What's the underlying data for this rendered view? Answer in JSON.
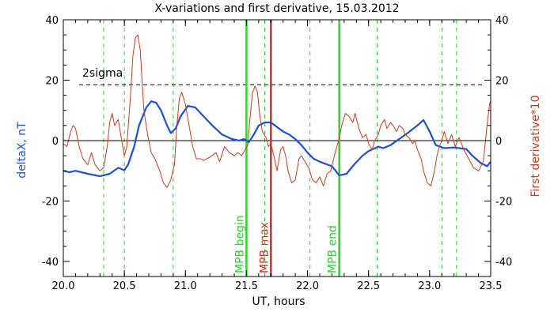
{
  "chart_data": {
    "type": "line",
    "title": "X-variations and first derivative, 15.03.2012",
    "xlabel": "UT, hours",
    "ylabel_left": "deltaX, nT",
    "ylabel_right": "First derivative*10",
    "xlim": [
      20.0,
      23.5
    ],
    "ylim": [
      -45,
      40
    ],
    "x_ticks": [
      20.0,
      20.5,
      21.0,
      21.5,
      22.0,
      22.5,
      23.0,
      23.5
    ],
    "x_tick_labels": [
      "20.0",
      "20.5",
      "21.0",
      "21.5",
      "22.0",
      "22.5",
      "23.0",
      "23.5"
    ],
    "y_ticks": [
      -40,
      -20,
      0,
      20,
      40
    ],
    "y_tick_labels": [
      "-40",
      "-20",
      "0",
      "20",
      "40"
    ],
    "threshold": {
      "label": "2sigma",
      "value": 18.5
    },
    "zero_line": 0,
    "dashed_verticals": [
      20.33,
      20.5,
      20.9,
      21.65,
      22.02,
      22.57,
      23.1,
      23.22
    ],
    "markers": [
      {
        "label": "MPB begin",
        "x": 21.5,
        "color": "#22dd22"
      },
      {
        "label": "MPB max",
        "x": 21.7,
        "color": "#e8281e"
      },
      {
        "label": "MPB end",
        "x": 22.26,
        "color": "#22dd22"
      }
    ],
    "series": [
      {
        "color": "#1f4fd8",
        "points": [
          [
            20.0,
            -10
          ],
          [
            20.05,
            -10.5
          ],
          [
            20.1,
            -10
          ],
          [
            20.2,
            -11
          ],
          [
            20.3,
            -11.8
          ],
          [
            20.38,
            -11
          ],
          [
            20.45,
            -9
          ],
          [
            20.5,
            -9.8
          ],
          [
            20.53,
            -8
          ],
          [
            20.58,
            -2
          ],
          [
            20.62,
            5
          ],
          [
            20.68,
            11
          ],
          [
            20.72,
            13
          ],
          [
            20.76,
            12.5
          ],
          [
            20.8,
            10
          ],
          [
            20.85,
            5
          ],
          [
            20.88,
            2.5
          ],
          [
            20.92,
            4
          ],
          [
            20.96,
            8
          ],
          [
            21.02,
            11.5
          ],
          [
            21.08,
            11
          ],
          [
            21.15,
            8
          ],
          [
            21.22,
            5
          ],
          [
            21.3,
            2
          ],
          [
            21.38,
            0.5
          ],
          [
            21.44,
            0
          ],
          [
            21.48,
            0.5
          ],
          [
            21.52,
            -0.5
          ],
          [
            21.56,
            2
          ],
          [
            21.6,
            5
          ],
          [
            21.65,
            6
          ],
          [
            21.7,
            6
          ],
          [
            21.75,
            4.5
          ],
          [
            21.8,
            3
          ],
          [
            21.85,
            2
          ],
          [
            21.9,
            0.5
          ],
          [
            21.95,
            -1.5
          ],
          [
            22.0,
            -4
          ],
          [
            22.05,
            -6
          ],
          [
            22.1,
            -7
          ],
          [
            22.2,
            -8.5
          ],
          [
            22.26,
            -11.5
          ],
          [
            22.32,
            -11
          ],
          [
            22.38,
            -8
          ],
          [
            22.45,
            -5
          ],
          [
            22.5,
            -3.5
          ],
          [
            22.58,
            -2
          ],
          [
            22.62,
            -2.5
          ],
          [
            22.68,
            -1.5
          ],
          [
            22.75,
            0.5
          ],
          [
            22.82,
            2.5
          ],
          [
            22.9,
            5
          ],
          [
            22.95,
            6.8
          ],
          [
            23.0,
            3
          ],
          [
            23.05,
            -1.5
          ],
          [
            23.12,
            -2.5
          ],
          [
            23.2,
            -2.3
          ],
          [
            23.3,
            -2.8
          ],
          [
            23.35,
            -5
          ],
          [
            23.42,
            -7.5
          ],
          [
            23.47,
            -8.5
          ],
          [
            23.5,
            -7
          ]
        ]
      },
      {
        "color": "#d03a1e",
        "points": [
          [
            20.0,
            -1
          ],
          [
            20.03,
            -2
          ],
          [
            20.06,
            3
          ],
          [
            20.08,
            5
          ],
          [
            20.1,
            4
          ],
          [
            20.13,
            -2
          ],
          [
            20.16,
            -6
          ],
          [
            20.2,
            -8
          ],
          [
            20.23,
            -4
          ],
          [
            20.26,
            -8
          ],
          [
            20.3,
            -10
          ],
          [
            20.33,
            -9
          ],
          [
            20.36,
            -2
          ],
          [
            20.38,
            6
          ],
          [
            20.4,
            9
          ],
          [
            20.42,
            5
          ],
          [
            20.45,
            7
          ],
          [
            20.47,
            2
          ],
          [
            20.5,
            -5
          ],
          [
            20.52,
            -2
          ],
          [
            20.55,
            15
          ],
          [
            20.57,
            28
          ],
          [
            20.59,
            34
          ],
          [
            20.61,
            35
          ],
          [
            20.63,
            30
          ],
          [
            20.66,
            10
          ],
          [
            20.69,
            2
          ],
          [
            20.72,
            -4
          ],
          [
            20.75,
            -6
          ],
          [
            20.79,
            -10
          ],
          [
            20.82,
            -14
          ],
          [
            20.85,
            -15.5
          ],
          [
            20.88,
            -13
          ],
          [
            20.91,
            -8
          ],
          [
            20.93,
            5
          ],
          [
            20.95,
            14
          ],
          [
            20.97,
            16
          ],
          [
            21.0,
            12
          ],
          [
            21.03,
            5
          ],
          [
            21.06,
            -2
          ],
          [
            21.09,
            -6
          ],
          [
            21.12,
            -6
          ],
          [
            21.15,
            -6.5
          ],
          [
            21.2,
            -5.5
          ],
          [
            21.25,
            -4
          ],
          [
            21.28,
            -7
          ],
          [
            21.32,
            -2
          ],
          [
            21.36,
            -4
          ],
          [
            21.4,
            -5
          ],
          [
            21.43,
            -4
          ],
          [
            21.46,
            -5
          ],
          [
            21.49,
            -3
          ],
          [
            21.51,
            -1.5
          ],
          [
            21.53,
            8
          ],
          [
            21.55,
            16
          ],
          [
            21.57,
            18
          ],
          [
            21.59,
            16
          ],
          [
            21.61,
            8
          ],
          [
            21.63,
            3
          ],
          [
            21.66,
            1
          ],
          [
            21.68,
            -2
          ],
          [
            21.7,
            -1
          ],
          [
            21.73,
            -6
          ],
          [
            21.75,
            -10
          ],
          [
            21.78,
            -3
          ],
          [
            21.8,
            -2
          ],
          [
            21.82,
            -5
          ],
          [
            21.84,
            -10
          ],
          [
            21.87,
            -14
          ],
          [
            21.9,
            -13
          ],
          [
            21.93,
            -6
          ],
          [
            21.95,
            -5
          ],
          [
            21.98,
            -7
          ],
          [
            22.01,
            -9
          ],
          [
            22.04,
            -13
          ],
          [
            22.07,
            -14
          ],
          [
            22.1,
            -12
          ],
          [
            22.13,
            -15
          ],
          [
            22.16,
            -11
          ],
          [
            22.19,
            -10
          ],
          [
            22.22,
            -5
          ],
          [
            22.24,
            -2
          ],
          [
            22.26,
            1
          ],
          [
            22.28,
            5
          ],
          [
            22.31,
            9
          ],
          [
            22.34,
            8
          ],
          [
            22.37,
            6
          ],
          [
            22.39,
            9
          ],
          [
            22.42,
            4
          ],
          [
            22.45,
            1
          ],
          [
            22.48,
            2
          ],
          [
            22.5,
            -1
          ],
          [
            22.53,
            -3
          ],
          [
            22.55,
            0
          ],
          [
            22.58,
            2
          ],
          [
            22.6,
            5
          ],
          [
            22.63,
            7
          ],
          [
            22.65,
            4
          ],
          [
            22.68,
            6
          ],
          [
            22.7,
            5
          ],
          [
            22.73,
            3
          ],
          [
            22.75,
            5
          ],
          [
            22.78,
            4
          ],
          [
            22.8,
            2
          ],
          [
            22.83,
            1
          ],
          [
            22.86,
            -1
          ],
          [
            22.88,
            0
          ],
          [
            22.9,
            -3
          ],
          [
            22.93,
            -6
          ],
          [
            22.95,
            -10
          ],
          [
            22.98,
            -14
          ],
          [
            23.01,
            -15
          ],
          [
            23.04,
            -10
          ],
          [
            23.06,
            -5
          ],
          [
            23.08,
            -2
          ],
          [
            23.1,
            0
          ],
          [
            23.12,
            3
          ],
          [
            23.15,
            -1
          ],
          [
            23.18,
            2
          ],
          [
            23.21,
            -2
          ],
          [
            23.24,
            1
          ],
          [
            23.28,
            -3
          ],
          [
            23.32,
            -6
          ],
          [
            23.36,
            -9
          ],
          [
            23.4,
            -10
          ],
          [
            23.44,
            -7
          ],
          [
            23.47,
            5
          ],
          [
            23.49,
            12
          ],
          [
            23.5,
            13
          ]
        ]
      }
    ]
  }
}
